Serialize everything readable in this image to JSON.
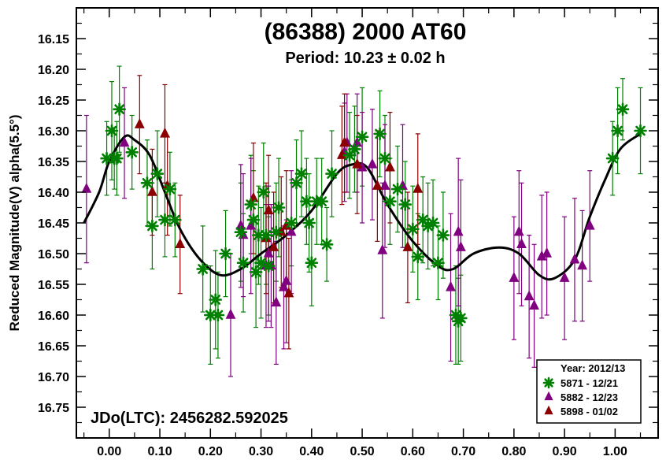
{
  "chart_data": {
    "type": "scatter",
    "title": "(86388) 2000 AT60",
    "subtitle": "Period: 10.23 ± 0.02 h",
    "ylabel": "Reduced Magnitude(V) alpha(5.5°)",
    "xlabel": "",
    "annotation": "JDo(LTC): 2456282.592025",
    "xlim": [
      -0.065,
      1.085
    ],
    "ylim": [
      16.1,
      16.8
    ],
    "y_inverted": true,
    "x_ticks": [
      "0.00",
      "0.10",
      "0.20",
      "0.30",
      "0.40",
      "0.50",
      "0.60",
      "0.70",
      "0.80",
      "0.90",
      "1.00"
    ],
    "y_ticks": [
      "16.15",
      "16.20",
      "16.25",
      "16.30",
      "16.35",
      "16.40",
      "16.45",
      "16.50",
      "16.55",
      "16.60",
      "16.65",
      "16.70",
      "16.75"
    ],
    "legend": {
      "title": "Year: 2012/13",
      "position": "bottom-right",
      "entries": [
        {
          "label": "5871 - 12/21",
          "marker": "asterisk",
          "color": "#008000"
        },
        {
          "label": "5882 - 12/23",
          "marker": "triangle",
          "color": "#800080"
        },
        {
          "label": "5898 - 01/02",
          "marker": "triangle",
          "color": "#8b0000"
        }
      ]
    },
    "fit_curve": {
      "color": "#000000",
      "points": [
        [
          -0.05,
          16.45
        ],
        [
          -0.02,
          16.4
        ],
        [
          0.0,
          16.35
        ],
        [
          0.03,
          16.31
        ],
        [
          0.05,
          16.315
        ],
        [
          0.08,
          16.34
        ],
        [
          0.11,
          16.4
        ],
        [
          0.14,
          16.46
        ],
        [
          0.18,
          16.51
        ],
        [
          0.22,
          16.535
        ],
        [
          0.26,
          16.525
        ],
        [
          0.3,
          16.5
        ],
        [
          0.35,
          16.47
        ],
        [
          0.4,
          16.43
        ],
        [
          0.45,
          16.37
        ],
        [
          0.48,
          16.355
        ],
        [
          0.51,
          16.36
        ],
        [
          0.55,
          16.42
        ],
        [
          0.6,
          16.48
        ],
        [
          0.65,
          16.52
        ],
        [
          0.68,
          16.525
        ],
        [
          0.72,
          16.5
        ],
        [
          0.77,
          16.49
        ],
        [
          0.81,
          16.5
        ],
        [
          0.85,
          16.535
        ],
        [
          0.88,
          16.54
        ],
        [
          0.92,
          16.51
        ],
        [
          0.95,
          16.44
        ],
        [
          0.98,
          16.38
        ],
        [
          1.01,
          16.33
        ],
        [
          1.05,
          16.305
        ]
      ]
    },
    "series": [
      {
        "name": "5871 - 12/21",
        "marker": "asterisk",
        "color": "#008000",
        "x": [
          -0.005,
          0.005,
          0.01,
          0.015,
          0.02,
          0.045,
          0.075,
          0.085,
          0.095,
          0.11,
          0.12,
          0.13,
          0.185,
          0.2,
          0.21,
          0.215,
          0.23,
          0.26,
          0.265,
          0.28,
          0.285,
          0.29,
          0.295,
          0.3,
          0.305,
          0.31,
          0.315,
          0.33,
          0.335,
          0.36,
          0.37,
          0.38,
          0.39,
          0.395,
          0.4,
          0.41,
          0.42,
          0.43,
          0.44,
          0.475,
          0.485,
          0.5,
          0.535,
          0.545,
          0.555,
          0.57,
          0.585,
          0.6,
          0.61,
          0.62,
          0.63,
          0.64,
          0.65,
          0.66,
          0.685,
          0.69,
          0.695,
          0.995,
          1.005,
          1.015,
          1.05
        ],
        "y": [
          16.345,
          16.3,
          16.345,
          16.345,
          16.265,
          16.335,
          16.385,
          16.455,
          16.37,
          16.445,
          16.395,
          16.445,
          16.525,
          16.6,
          16.575,
          16.6,
          16.5,
          16.465,
          16.515,
          16.42,
          16.445,
          16.53,
          16.47,
          16.515,
          16.4,
          16.47,
          16.52,
          16.465,
          16.425,
          16.45,
          16.385,
          16.37,
          16.415,
          16.45,
          16.515,
          16.415,
          16.415,
          16.485,
          16.37,
          16.34,
          16.33,
          16.31,
          16.305,
          16.345,
          16.415,
          16.395,
          16.42,
          16.46,
          16.505,
          16.445,
          16.455,
          16.45,
          16.515,
          16.47,
          16.6,
          16.61,
          16.605,
          16.345,
          16.3,
          16.265,
          16.3
        ],
        "err": [
          0.06,
          0.08,
          0.05,
          0.06,
          0.07,
          0.06,
          0.07,
          0.07,
          0.07,
          0.06,
          0.06,
          0.06,
          0.07,
          0.08,
          0.08,
          0.07,
          0.07,
          0.08,
          0.08,
          0.08,
          0.08,
          0.09,
          0.08,
          0.09,
          0.08,
          0.08,
          0.08,
          0.08,
          0.08,
          0.07,
          0.07,
          0.07,
          0.07,
          0.08,
          0.07,
          0.07,
          0.07,
          0.06,
          0.07,
          0.07,
          0.07,
          0.08,
          0.07,
          0.07,
          0.07,
          0.07,
          0.07,
          0.07,
          0.07,
          0.07,
          0.07,
          0.07,
          0.06,
          0.07,
          0.08,
          0.07,
          0.07,
          0.06,
          0.07,
          0.05,
          0.07
        ]
      },
      {
        "name": "5882 - 12/23",
        "marker": "triangle",
        "color": "#800080",
        "x": [
          -0.045,
          0.03,
          0.24,
          0.26,
          0.265,
          0.28,
          0.31,
          0.315,
          0.32,
          0.33,
          0.345,
          0.35,
          0.36,
          0.465,
          0.47,
          0.49,
          0.5,
          0.52,
          0.54,
          0.545,
          0.58,
          0.675,
          0.69,
          0.695,
          0.8,
          0.81,
          0.815,
          0.83,
          0.84,
          0.855,
          0.865,
          0.9,
          0.92,
          0.935,
          0.95
        ],
        "y": [
          16.395,
          16.32,
          16.6,
          16.455,
          16.47,
          16.455,
          16.52,
          16.5,
          16.52,
          16.58,
          16.555,
          16.545,
          16.465,
          16.335,
          16.32,
          16.32,
          16.36,
          16.355,
          16.495,
          16.39,
          16.39,
          16.555,
          16.465,
          16.49,
          16.54,
          16.465,
          16.485,
          16.57,
          16.585,
          16.505,
          16.5,
          16.54,
          16.51,
          16.52,
          16.455
        ],
        "err": [
          0.12,
          0.09,
          0.1,
          0.1,
          0.1,
          0.11,
          0.1,
          0.11,
          0.1,
          0.1,
          0.1,
          0.1,
          0.1,
          0.08,
          0.08,
          0.08,
          0.09,
          0.09,
          0.11,
          0.1,
          0.1,
          0.12,
          0.12,
          0.11,
          0.1,
          0.1,
          0.1,
          0.1,
          0.1,
          0.1,
          0.1,
          0.1,
          0.1,
          0.09,
          0.09
        ]
      },
      {
        "name": "5898 - 01/02",
        "marker": "triangle",
        "color": "#8b0000",
        "x": [
          0.06,
          0.085,
          0.11,
          0.115,
          0.14,
          0.285,
          0.31,
          0.315,
          0.325,
          0.34,
          0.35,
          0.355,
          0.46,
          0.465,
          0.49,
          0.53,
          0.555,
          0.59,
          0.61
        ],
        "y": [
          16.29,
          16.4,
          16.305,
          16.39,
          16.485,
          16.41,
          16.475,
          16.43,
          16.49,
          16.465,
          16.455,
          16.565,
          16.34,
          16.32,
          16.355,
          16.39,
          16.36,
          16.49,
          16.395
        ],
        "err": [
          0.08,
          0.07,
          0.08,
          0.08,
          0.08,
          0.09,
          0.09,
          0.09,
          0.09,
          0.09,
          0.09,
          0.09,
          0.08,
          0.08,
          0.08,
          0.09,
          0.09,
          0.09,
          0.09
        ]
      }
    ]
  }
}
